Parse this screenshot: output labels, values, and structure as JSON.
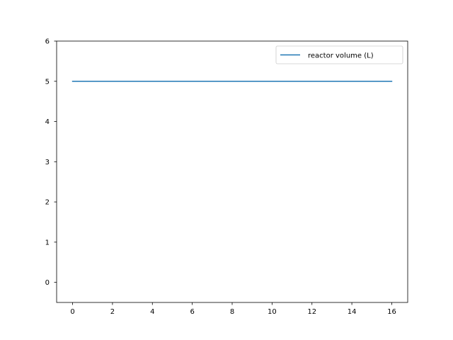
{
  "chart_data": {
    "type": "line",
    "title": "",
    "xlabel": "",
    "ylabel": "",
    "xlim": [
      -0.8,
      16.8
    ],
    "ylim": [
      -0.5,
      6
    ],
    "xticks": [
      0,
      2,
      4,
      6,
      8,
      10,
      12,
      14,
      16
    ],
    "yticks": [
      0,
      1,
      2,
      3,
      4,
      5,
      6
    ],
    "xtick_labels": [
      "0",
      "2",
      "4",
      "6",
      "8",
      "10",
      "12",
      "14",
      "16"
    ],
    "ytick_labels": [
      "0",
      "1",
      "2",
      "3",
      "4",
      "5",
      "6"
    ],
    "grid": false,
    "legend_position": "upper right",
    "series": [
      {
        "name": "reactor volume (L)",
        "color": "#1f77b4",
        "x": [
          0,
          1,
          2,
          3,
          4,
          5,
          6,
          7,
          8,
          9,
          10,
          11,
          12,
          13,
          14,
          15,
          16
        ],
        "y": [
          5.0,
          5.0,
          5.0,
          5.0,
          5.0,
          5.0,
          5.0,
          5.0,
          5.0,
          5.0,
          5.0,
          5.0,
          5.0,
          5.0,
          5.0,
          5.0,
          5.0
        ]
      }
    ]
  }
}
